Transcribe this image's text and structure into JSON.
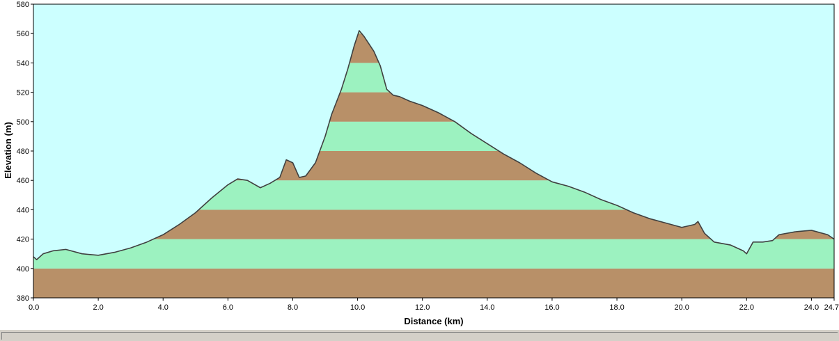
{
  "chart_data": {
    "type": "area",
    "xlabel": "Distance  (km)",
    "ylabel": "Elevation (m)",
    "xlim": [
      0,
      24.7
    ],
    "ylim": [
      380,
      580
    ],
    "x_ticks": [
      "0.0",
      "2.0",
      "4.0",
      "6.0",
      "8.0",
      "10.0",
      "12.0",
      "14.0",
      "16.0",
      "18.0",
      "20.0",
      "22.0",
      "24.0",
      "24.7"
    ],
    "y_ticks": [
      "380",
      "400",
      "420",
      "440",
      "460",
      "480",
      "500",
      "520",
      "540",
      "560",
      "580"
    ],
    "band_step": 20,
    "colors": {
      "sky": "#ccffff",
      "band_brown": "#b89068",
      "band_green": "#9cf2c0",
      "outline": "#404040"
    },
    "series": [
      {
        "x": [
          0.0,
          0.1,
          0.3,
          0.6,
          1.0,
          1.5,
          2.0,
          2.5,
          3.0,
          3.5,
          4.0,
          4.5,
          5.0,
          5.5,
          6.0,
          6.3,
          6.6,
          7.0,
          7.3,
          7.6,
          7.8,
          8.0,
          8.2,
          8.4,
          8.7,
          9.0,
          9.2,
          9.5,
          9.7,
          9.9,
          10.05,
          10.2,
          10.5,
          10.7,
          10.9,
          11.1,
          11.3,
          11.6,
          12.0,
          12.5,
          13.0,
          13.5,
          14.0,
          14.5,
          15.0,
          15.5,
          16.0,
          16.5,
          17.0,
          17.5,
          18.0,
          18.5,
          19.0,
          19.5,
          20.0,
          20.4,
          20.5,
          20.7,
          21.0,
          21.5,
          21.9,
          22.0,
          22.2,
          22.5,
          22.8,
          23.0,
          23.5,
          24.0,
          24.5,
          24.7
        ],
        "y": [
          408,
          406,
          410,
          412,
          413,
          410,
          409,
          411,
          414,
          418,
          423,
          430,
          438,
          448,
          457,
          461,
          460,
          455,
          458,
          462,
          474,
          472,
          462,
          463,
          472,
          490,
          505,
          522,
          536,
          552,
          562,
          558,
          548,
          538,
          522,
          518,
          517,
          514,
          511,
          506,
          500,
          492,
          485,
          478,
          472,
          465,
          459,
          456,
          452,
          447,
          443,
          438,
          434,
          431,
          428,
          430,
          432,
          424,
          418,
          416,
          412,
          410,
          418,
          418,
          419,
          423,
          425,
          426,
          423,
          420
        ]
      }
    ]
  }
}
